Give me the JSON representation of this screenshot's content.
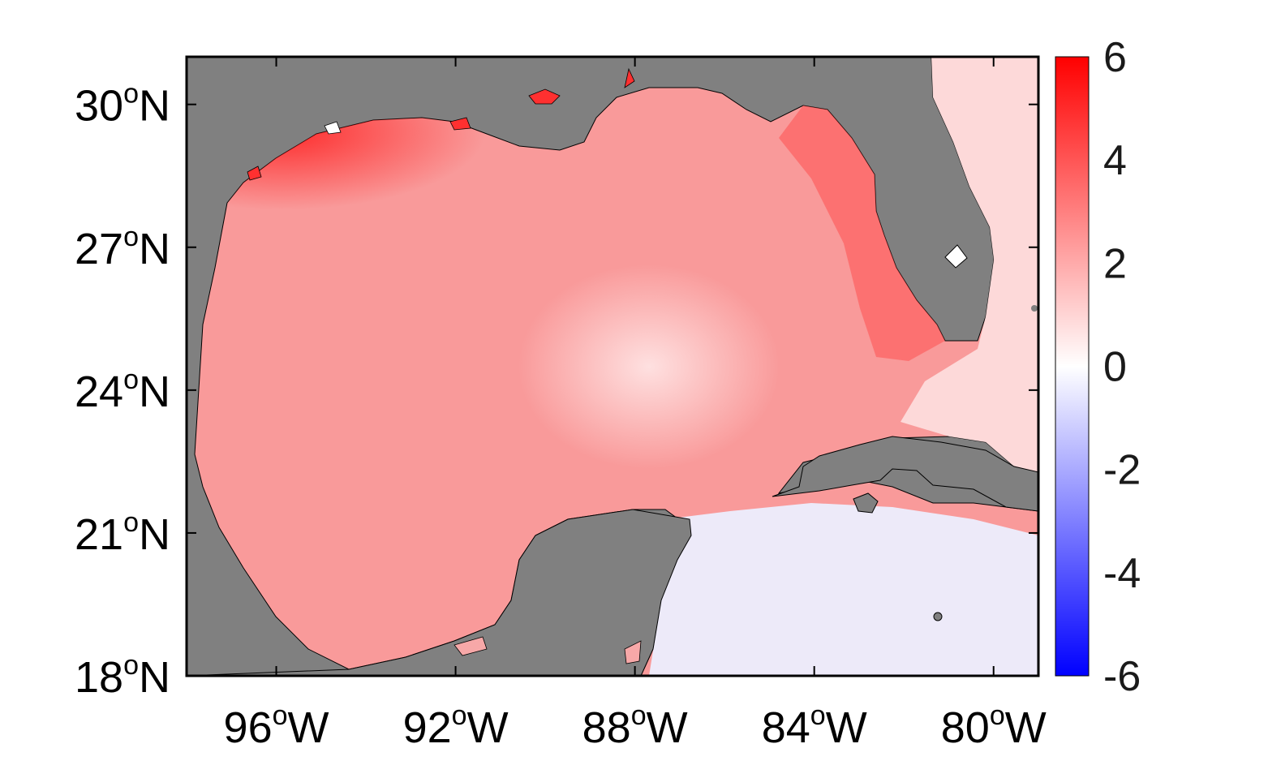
{
  "map": {
    "lat_ticks": [
      {
        "value": 30,
        "deg": "30",
        "hemi": "N"
      },
      {
        "value": 27,
        "deg": "27",
        "hemi": "N"
      },
      {
        "value": 24,
        "deg": "24",
        "hemi": "N"
      },
      {
        "value": 21,
        "deg": "21",
        "hemi": "N"
      },
      {
        "value": 18,
        "deg": "18",
        "hemi": "N"
      }
    ],
    "lon_ticks": [
      {
        "value": -96,
        "deg": "96",
        "hemi": "W"
      },
      {
        "value": -92,
        "deg": "92",
        "hemi": "W"
      },
      {
        "value": -88,
        "deg": "88",
        "hemi": "W"
      },
      {
        "value": -84,
        "deg": "84",
        "hemi": "W"
      },
      {
        "value": -80,
        "deg": "80",
        "hemi": "W"
      }
    ],
    "degree_symbol": "o",
    "lon_range": [
      -98,
      -79
    ],
    "lat_range": [
      18,
      31
    ],
    "land_color": "#808080",
    "ocean_field_note_colors": [
      "#ff0000",
      "#ffffff",
      "#0000ff"
    ]
  },
  "colorbar": {
    "ticks": [
      "6",
      "4",
      "2",
      "0",
      "-2",
      "-4",
      "-6"
    ],
    "tick_values": [
      6,
      4,
      2,
      0,
      -2,
      -4,
      -6
    ],
    "range": [
      -6,
      6
    ],
    "top_color": "#ff0000",
    "mid_color": "#ffffff",
    "bottom_color": "#0000ff"
  }
}
